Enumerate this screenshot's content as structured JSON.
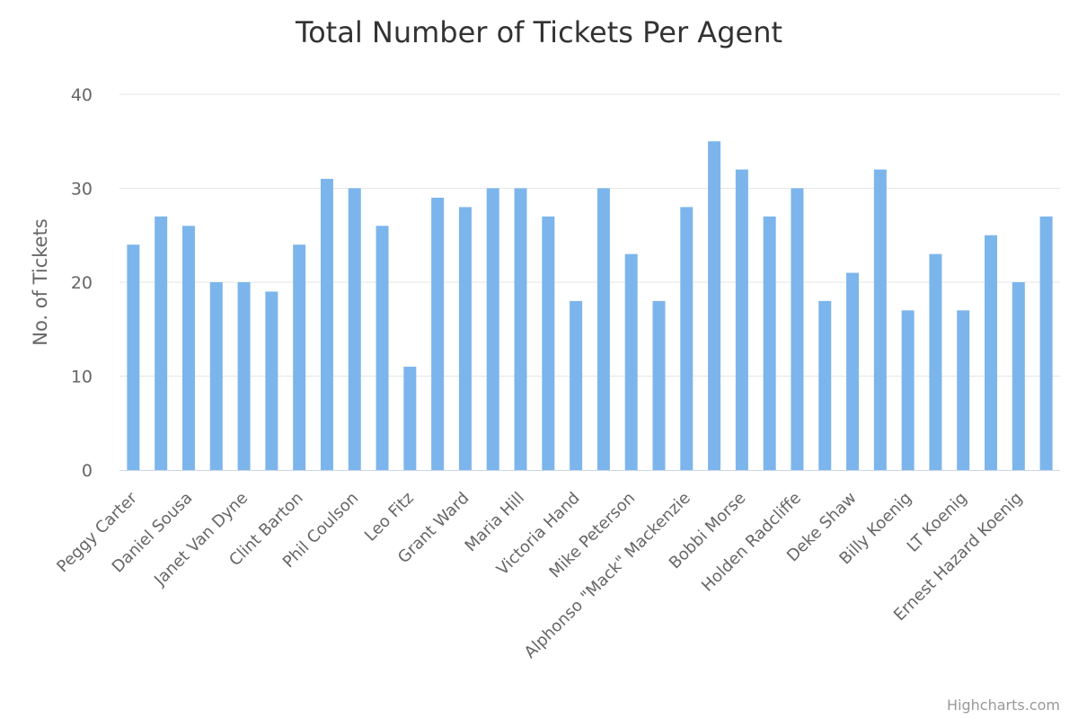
{
  "chart_data": {
    "type": "bar",
    "title": "Total Number of Tickets Per Agent",
    "ylabel": "No. of Tickets",
    "ylim": [
      0,
      40
    ],
    "yticks": [
      0,
      10,
      20,
      30,
      40
    ],
    "grid": true,
    "legend": "none",
    "bar_color": "#7cb5ec",
    "categories": [
      "Peggy Carter",
      "",
      "Daniel Sousa",
      "",
      "Janet Van Dyne",
      "",
      "Clint Barton",
      "",
      "Phil Coulson",
      "",
      "Leo Fitz",
      "",
      "Grant Ward",
      "",
      "Maria Hill",
      "",
      "Victoria Hand",
      "",
      "Mike Peterson",
      "",
      "Alphonso \"Mack\" Mackenzie",
      "",
      "Bobbi Morse",
      "",
      "Holden Radcliffe",
      "",
      "Deke Shaw",
      "",
      "Billy Koenig",
      "",
      "LT Koenig",
      "",
      "Ernest Hazard Koenig",
      ""
    ],
    "values": [
      24,
      27,
      26,
      20,
      20,
      19,
      24,
      31,
      30,
      26,
      11,
      29,
      28,
      30,
      30,
      27,
      18,
      30,
      23,
      18,
      28,
      35,
      32,
      27,
      30,
      18,
      21,
      32,
      17,
      23,
      17,
      25,
      20,
      27
    ]
  },
  "credits": "Highcharts.com"
}
